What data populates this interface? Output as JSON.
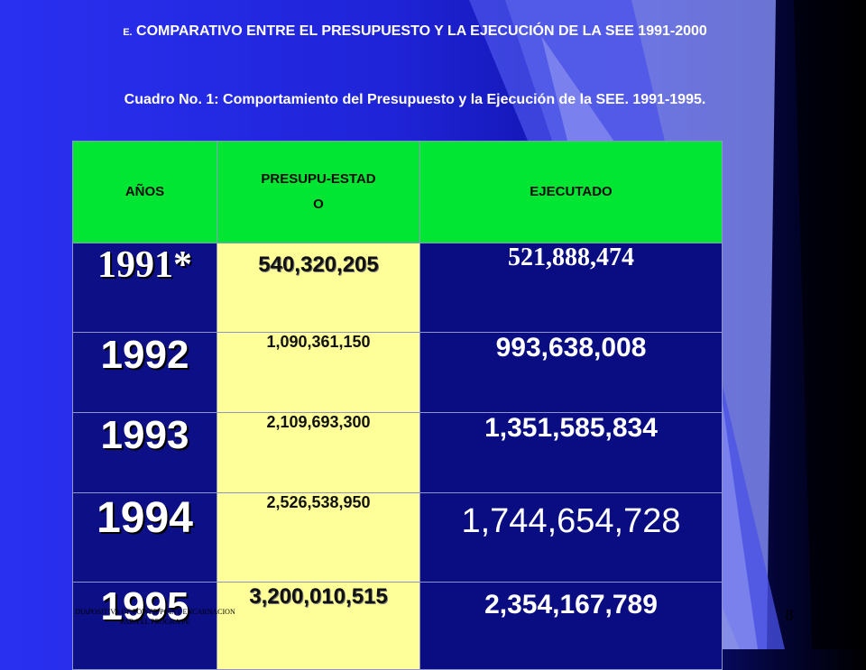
{
  "slide": {
    "title_prefix": "E.",
    "title_main": "COMPARATIVO ENTRE EL PRESUPUESTO Y LA EJECUCIÓN DE LA SEE 1991-2000",
    "subtitle": "Cuadro No. 1: Comportamiento del Presupuesto y la Ejecución de la SEE. 1991-1995.",
    "page_number": "8",
    "footnote": "DIAPOSITIVA DE POWER POINT ENCARNACION PARA EL PROGRA PE"
  },
  "table": {
    "headers": {
      "years": "AÑOS",
      "budget": "PRESUPU-ESTADO",
      "executed": "EJECUTADO"
    },
    "rows": [
      {
        "year": "1991*",
        "budget": "540,320,205",
        "executed": "521,888,474"
      },
      {
        "year": "1992",
        "budget": "1,090,361,150",
        "executed": "993,638,008"
      },
      {
        "year": "1993",
        "budget": "2,109,693,300",
        "executed": "1,351,585,834"
      },
      {
        "year": "1994",
        "budget": "2,526,538,950",
        "executed": "1,744,654,728"
      },
      {
        "year": "1995",
        "budget": "3,200,010,515",
        "executed": "2,354,167,789"
      }
    ]
  },
  "colors": {
    "header_green": "#00e632",
    "budget_yellow": "#ffff99",
    "cell_navy": "#0c0f86",
    "background_blue": "#2a30f0"
  }
}
